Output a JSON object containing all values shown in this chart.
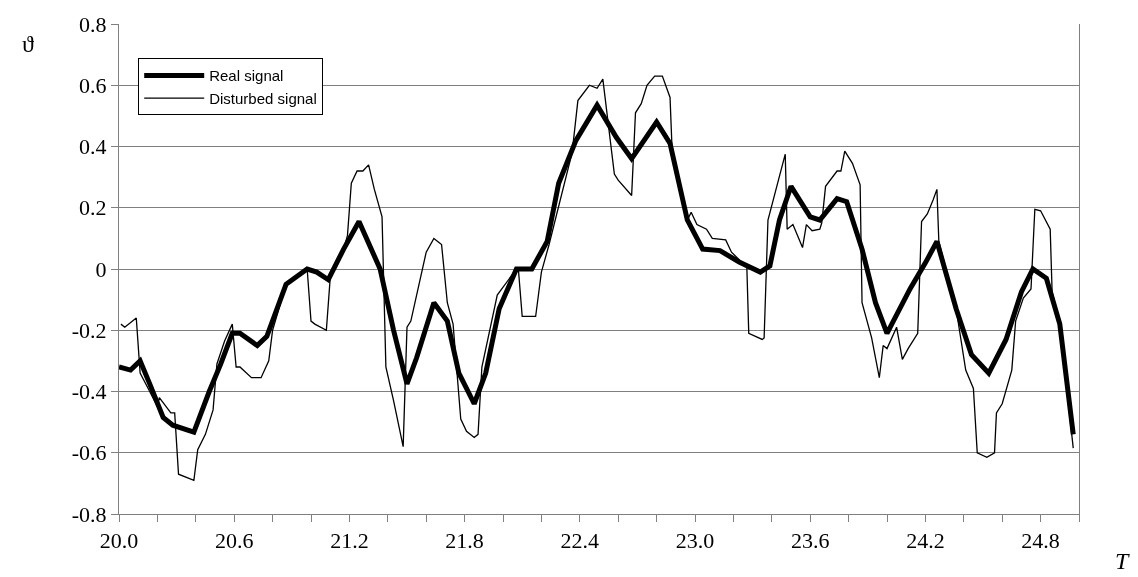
{
  "chart_data": {
    "type": "line",
    "xlabel": "T",
    "ylabel": "ϑ",
    "xlim": [
      20,
      25
    ],
    "ylim": [
      -0.8,
      0.8
    ],
    "xticks": [
      {
        "value": 20.0,
        "label": "20.0"
      },
      {
        "value": 20.2,
        "label": null
      },
      {
        "value": 20.4,
        "label": null
      },
      {
        "value": 20.6,
        "label": "20.6"
      },
      {
        "value": 20.8,
        "label": null
      },
      {
        "value": 21.0,
        "label": null
      },
      {
        "value": 21.2,
        "label": "21.2"
      },
      {
        "value": 21.4,
        "label": null
      },
      {
        "value": 21.6,
        "label": null
      },
      {
        "value": 21.8,
        "label": "21.8"
      },
      {
        "value": 22.0,
        "label": null
      },
      {
        "value": 22.2,
        "label": null
      },
      {
        "value": 22.4,
        "label": "22.4"
      },
      {
        "value": 22.6,
        "label": null
      },
      {
        "value": 22.8,
        "label": null
      },
      {
        "value": 23.0,
        "label": "23.0"
      },
      {
        "value": 23.2,
        "label": null
      },
      {
        "value": 23.4,
        "label": null
      },
      {
        "value": 23.6,
        "label": "23.6"
      },
      {
        "value": 23.8,
        "label": null
      },
      {
        "value": 24.0,
        "label": null
      },
      {
        "value": 24.2,
        "label": "24.2"
      },
      {
        "value": 24.4,
        "label": null
      },
      {
        "value": 24.6,
        "label": null
      },
      {
        "value": 24.8,
        "label": "24.8"
      },
      {
        "value": 25.0,
        "label": null
      }
    ],
    "yticks": [
      -0.8,
      -0.6,
      -0.4,
      -0.2,
      0,
      0.2,
      0.4,
      0.6,
      0.8
    ],
    "grid": "y",
    "legend": "top left",
    "marker": "none",
    "line_style": "solid",
    "series": [
      {
        "name": "Real signal",
        "color": "#000000",
        "x": [
          20.0,
          20.06,
          20.11,
          20.16,
          20.23,
          20.28,
          20.39,
          20.47,
          20.53,
          20.59,
          20.63,
          20.72,
          20.77,
          20.87,
          20.98,
          21.03,
          21.09,
          21.17,
          21.25,
          21.36,
          21.43,
          21.5,
          21.55,
          21.64,
          21.71,
          21.77,
          21.85,
          21.91,
          21.98,
          22.07,
          22.15,
          22.23,
          22.29,
          22.38,
          22.49,
          22.59,
          22.67,
          22.8,
          22.87,
          22.96,
          23.04,
          23.13,
          23.23,
          23.34,
          23.39,
          23.44,
          23.5,
          23.6,
          23.65,
          23.74,
          23.79,
          23.87,
          23.94,
          24.0,
          24.12,
          24.2,
          24.26,
          24.36,
          24.44,
          24.53,
          24.62,
          24.7,
          24.76,
          24.83,
          24.9,
          24.97
        ],
        "values": [
          -0.32,
          -0.33,
          -0.3,
          -0.375,
          -0.485,
          -0.51,
          -0.533,
          -0.4,
          -0.31,
          -0.21,
          -0.21,
          -0.25,
          -0.22,
          -0.05,
          0.0,
          -0.01,
          -0.035,
          0.065,
          0.155,
          0.0,
          -0.2,
          -0.375,
          -0.29,
          -0.11,
          -0.17,
          -0.34,
          -0.44,
          -0.34,
          -0.13,
          0.0,
          0.0,
          0.09,
          0.28,
          0.42,
          0.535,
          0.43,
          0.36,
          0.48,
          0.41,
          0.16,
          0.065,
          0.06,
          0.023,
          -0.01,
          0.01,
          0.16,
          0.27,
          0.17,
          0.16,
          0.23,
          0.22,
          0.065,
          -0.11,
          -0.21,
          -0.065,
          0.02,
          0.09,
          -0.13,
          -0.28,
          -0.34,
          -0.23,
          -0.075,
          0.0,
          -0.03,
          -0.18,
          -0.54
        ]
      },
      {
        "name": "Disturbed signal",
        "color": "#000000",
        "x": [
          20.01,
          20.03,
          20.09,
          20.11,
          20.16,
          20.2,
          20.21,
          20.27,
          20.29,
          20.31,
          20.39,
          20.41,
          20.45,
          20.49,
          20.51,
          20.55,
          20.59,
          20.61,
          20.63,
          20.69,
          20.74,
          20.78,
          20.8,
          20.87,
          20.98,
          21.0,
          21.02,
          21.08,
          21.1,
          21.17,
          21.19,
          21.21,
          21.24,
          21.27,
          21.3,
          21.33,
          21.37,
          21.39,
          21.43,
          21.48,
          21.5,
          21.52,
          21.6,
          21.64,
          21.68,
          21.71,
          21.74,
          21.78,
          21.81,
          21.85,
          21.87,
          21.89,
          21.97,
          22.07,
          22.08,
          22.1,
          22.17,
          22.2,
          22.24,
          22.36,
          22.39,
          22.45,
          22.49,
          22.52,
          22.58,
          22.6,
          22.67,
          22.69,
          22.72,
          22.75,
          22.79,
          22.83,
          22.87,
          22.88,
          22.96,
          22.98,
          23.01,
          23.06,
          23.09,
          23.16,
          23.19,
          23.27,
          23.28,
          23.35,
          23.36,
          23.38,
          23.47,
          23.48,
          23.51,
          23.56,
          23.58,
          23.61,
          23.65,
          23.66,
          23.68,
          23.74,
          23.76,
          23.78,
          23.82,
          23.86,
          23.87,
          23.92,
          23.96,
          23.98,
          24.0,
          24.05,
          24.08,
          24.11,
          24.16,
          24.18,
          24.21,
          24.24,
          24.26,
          24.27,
          24.36,
          24.41,
          24.45,
          24.47,
          24.52,
          24.56,
          24.57,
          24.6,
          24.65,
          24.67,
          24.71,
          24.75,
          24.77,
          24.8,
          24.85,
          24.86,
          24.9,
          24.97
        ],
        "values": [
          -0.18,
          -0.19,
          -0.16,
          -0.34,
          -0.4,
          -0.45,
          -0.42,
          -0.47,
          -0.47,
          -0.67,
          -0.69,
          -0.59,
          -0.54,
          -0.46,
          -0.31,
          -0.235,
          -0.18,
          -0.32,
          -0.32,
          -0.355,
          -0.355,
          -0.3,
          -0.2,
          -0.05,
          0.0,
          -0.17,
          -0.18,
          -0.2,
          -0.03,
          0.065,
          0.11,
          0.28,
          0.32,
          0.32,
          0.34,
          0.26,
          0.17,
          -0.32,
          -0.43,
          -0.58,
          -0.19,
          -0.17,
          0.055,
          0.1,
          0.08,
          -0.11,
          -0.18,
          -0.49,
          -0.53,
          -0.55,
          -0.54,
          -0.32,
          -0.085,
          0.0,
          0.0,
          -0.155,
          -0.155,
          -0.01,
          0.08,
          0.38,
          0.55,
          0.6,
          0.59,
          0.62,
          0.31,
          0.29,
          0.24,
          0.51,
          0.54,
          0.6,
          0.63,
          0.63,
          0.56,
          0.4,
          0.16,
          0.185,
          0.145,
          0.13,
          0.1,
          0.095,
          0.055,
          0.006,
          -0.21,
          -0.23,
          -0.225,
          0.16,
          0.375,
          0.13,
          0.145,
          0.07,
          0.145,
          0.125,
          0.13,
          0.15,
          0.27,
          0.32,
          0.32,
          0.385,
          0.345,
          0.275,
          -0.11,
          -0.225,
          -0.355,
          -0.25,
          -0.26,
          -0.19,
          -0.295,
          -0.26,
          -0.21,
          0.155,
          0.18,
          0.225,
          0.26,
          0.09,
          -0.13,
          -0.33,
          -0.39,
          -0.6,
          -0.615,
          -0.6,
          -0.47,
          -0.44,
          -0.33,
          -0.17,
          -0.095,
          -0.065,
          0.195,
          0.19,
          0.13,
          -0.075,
          -0.18,
          -0.585
        ]
      }
    ]
  }
}
